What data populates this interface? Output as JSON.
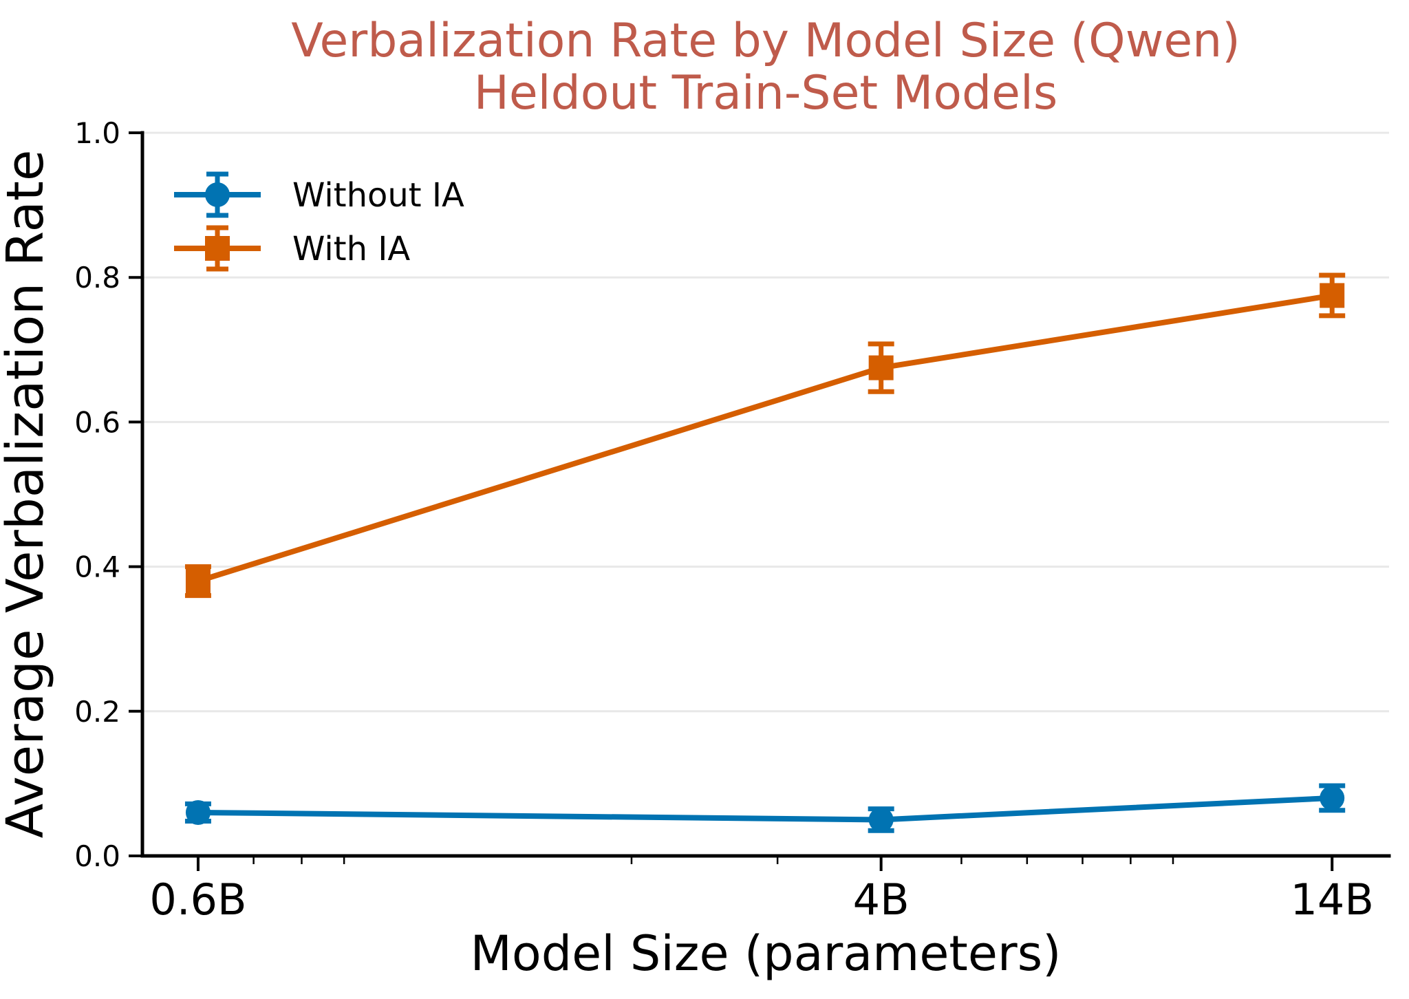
{
  "chart_data": {
    "type": "line",
    "title_line1": "Verbalization Rate by Model Size (Qwen)",
    "title_line2": "Heldout Train-Set Models",
    "title_color": "#bf5b4b",
    "xlabel": "Model Size (parameters)",
    "ylabel": "Average Verbalization Rate",
    "x_scale": "log",
    "x": [
      0.6,
      4,
      14
    ],
    "x_tick_labels": [
      "0.6B",
      "4B",
      "14B"
    ],
    "x_minor_ticks": [
      0.7,
      0.8,
      0.9,
      2,
      3,
      5,
      6,
      7,
      8,
      9
    ],
    "xlim": [
      0.514,
      16.4
    ],
    "ylim": [
      0.0,
      1.0
    ],
    "y_ticks": [
      0.0,
      0.2,
      0.4,
      0.6,
      0.8,
      1.0
    ],
    "y_tick_labels": [
      "0.0",
      "0.2",
      "0.4",
      "0.6",
      "0.8",
      "1.0"
    ],
    "grid": "horizontal",
    "grid_color": "#e8e8e8",
    "axis_color": "#000000",
    "legend": {
      "position": "upper-left",
      "frame": false
    },
    "series": [
      {
        "name": "Without IA",
        "color": "#0173b2",
        "marker": "circle",
        "values": [
          0.06,
          0.05,
          0.08
        ],
        "errors": [
          0.012,
          0.015,
          0.017
        ]
      },
      {
        "name": "With IA",
        "color": "#d55e00",
        "marker": "square",
        "values": [
          0.38,
          0.675,
          0.775
        ],
        "errors": [
          0.02,
          0.033,
          0.028
        ]
      }
    ]
  }
}
